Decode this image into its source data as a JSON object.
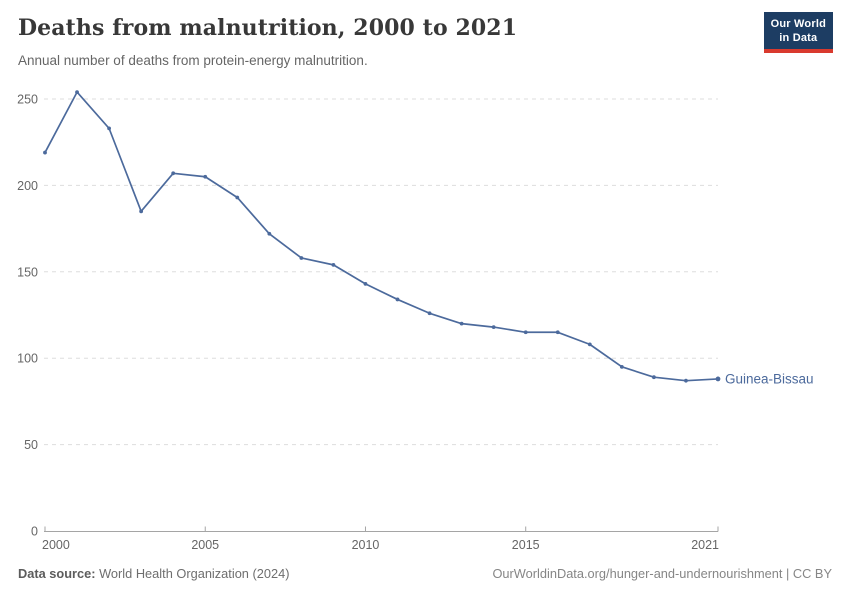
{
  "header": {
    "title": "Deaths from malnutrition, 2000 to 2021",
    "subtitle": "Annual number of deaths from protein-energy malnutrition.",
    "logo": {
      "line1": "Our World",
      "line2": "in Data"
    }
  },
  "chart_data": {
    "type": "line",
    "title": "Deaths from malnutrition, 2000 to 2021",
    "subtitle": "Annual number of deaths from protein-energy malnutrition.",
    "x": [
      2000,
      2001,
      2002,
      2003,
      2004,
      2005,
      2006,
      2007,
      2008,
      2009,
      2010,
      2011,
      2012,
      2013,
      2014,
      2015,
      2016,
      2017,
      2018,
      2019,
      2020,
      2021
    ],
    "series": [
      {
        "name": "Guinea-Bissau",
        "color": "#4c6a9c",
        "values": [
          219,
          254,
          233,
          185,
          207,
          205,
          193,
          172,
          158,
          154,
          143,
          134,
          126,
          120,
          118,
          115,
          115,
          108,
          95,
          89,
          87,
          88
        ]
      }
    ],
    "xlabel": "",
    "ylabel": "",
    "xlim": [
      2000,
      2021
    ],
    "ylim": [
      0,
      250
    ],
    "y_ticks": [
      0,
      50,
      100,
      150,
      200,
      250
    ],
    "x_ticks": [
      2000,
      2005,
      2010,
      2015,
      2021
    ],
    "grid": "horizontal-dashed",
    "legend_position": "end-of-line-label"
  },
  "footer": {
    "source_label": "Data source:",
    "source_value": "World Health Organization (2024)",
    "citation": "OurWorldinData.org/hunger-and-undernourishment | CC BY"
  },
  "colors": {
    "line": "#4c6a9c",
    "grid": "#dddddd",
    "axis": "#a5a5a5",
    "tick_label": "#666666",
    "title": "#383838",
    "subtitle": "#666666",
    "footer": "#6e6e6e",
    "logo_bg": "#1d3d63",
    "logo_accent": "#d93a2e"
  }
}
